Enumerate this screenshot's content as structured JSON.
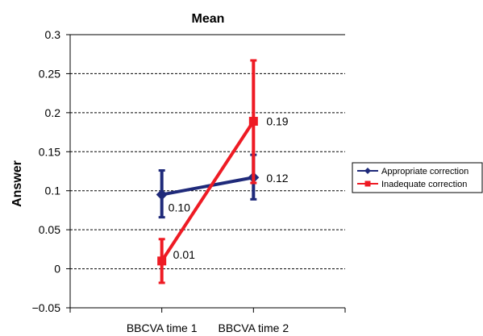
{
  "chart_data": {
    "type": "line",
    "title": "Mean",
    "xlabel": "",
    "ylabel": "Answer",
    "categories": [
      "BBCVA time 1",
      "BBCVA time 2"
    ],
    "ylim": [
      -0.05,
      0.3
    ],
    "yticks": [
      -0.05,
      0,
      0.05,
      0.1,
      0.15,
      0.2,
      0.25,
      0.3
    ],
    "ytick_labels": [
      "−0.05",
      "0",
      "0.05",
      "0.1",
      "0.15",
      "0.2",
      "0.25",
      "0.3"
    ],
    "grid": "horizontal dashed",
    "legend_position": "right",
    "series": [
      {
        "name": "Appropriate correction",
        "color": "#1f2a7a",
        "marker": "diamond",
        "values": [
          0.095,
          0.117
        ],
        "error_low": [
          0.066,
          0.089
        ],
        "error_high": [
          0.126,
          0.146
        ],
        "data_labels": [
          "0.10",
          "0.12"
        ]
      },
      {
        "name": "Inadequate correction",
        "color": "#ee1b24",
        "marker": "square",
        "values": [
          0.01,
          0.189
        ],
        "error_low": [
          -0.018,
          0.11
        ],
        "error_high": [
          0.038,
          0.267
        ],
        "data_labels": [
          "0.01",
          "0.19"
        ]
      }
    ]
  }
}
